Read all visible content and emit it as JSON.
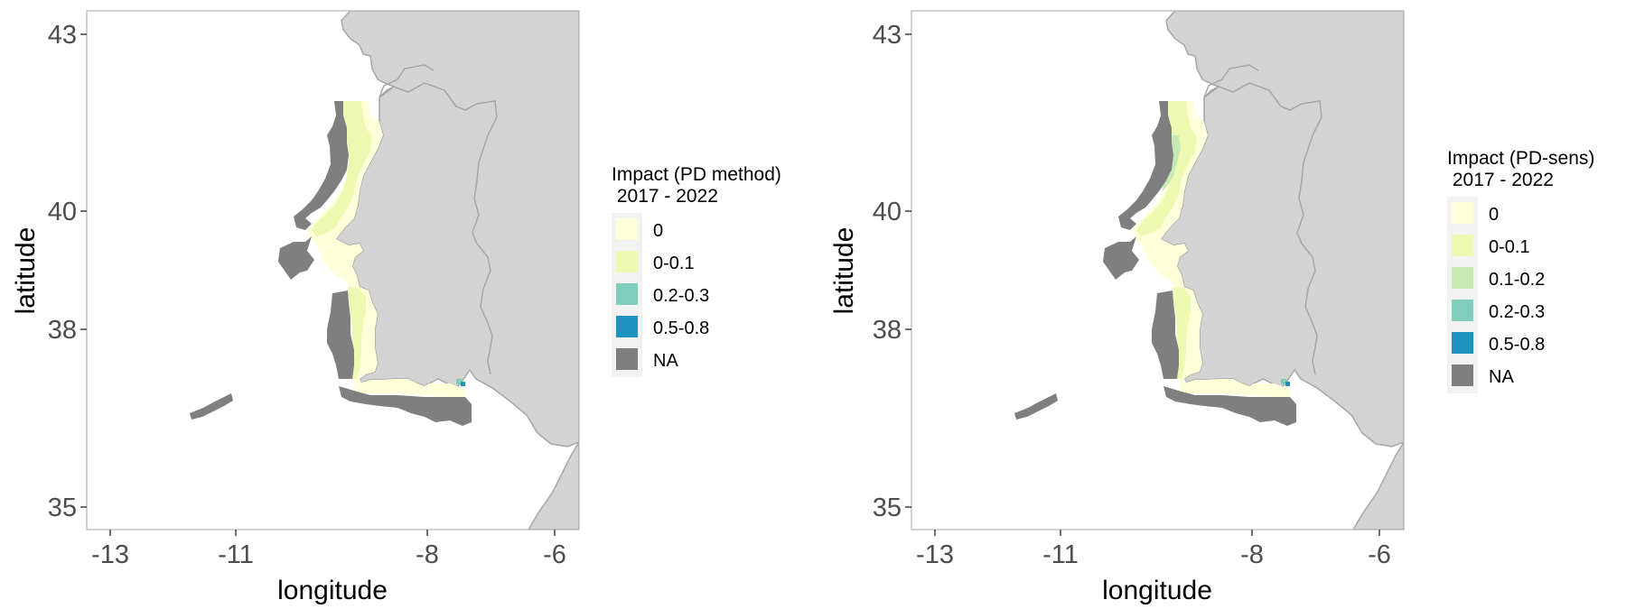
{
  "colors": {
    "land": "#d3d3d3",
    "land_border": "#a6a6a6",
    "na": "#7f7f7f",
    "frame": "#b3b3b3",
    "legend_bg": "#f2f2f2"
  },
  "chart_data": [
    {
      "type": "heatmap",
      "xlabel": "longitude",
      "ylabel": "latitude",
      "x_ticks": [
        "-13",
        "-11",
        "-8",
        "-6"
      ],
      "y_ticks": [
        "43",
        "40",
        "38",
        "35"
      ],
      "xlim": [
        -13.4,
        -5.7
      ],
      "ylim": [
        34.6,
        43.4
      ],
      "grid": false,
      "legend": {
        "position": "right",
        "title_line1": "Impact (PD method)",
        "title_line2": " 2017 - 2022",
        "entries": [
          {
            "label": "0",
            "color": "#ffffd9"
          },
          {
            "label": "0-0.1",
            "color": "#edf8b1"
          },
          {
            "label": "0.2-0.3",
            "color": "#7fcdbb"
          },
          {
            "label": "0.5-0.8",
            "color": "#1d91c0"
          },
          {
            "label": "NA",
            "color": "#7f7f7f"
          }
        ]
      }
    },
    {
      "type": "heatmap",
      "xlabel": "longitude",
      "ylabel": "latitude",
      "x_ticks": [
        "-13",
        "-11",
        "-8",
        "-6"
      ],
      "y_ticks": [
        "43",
        "40",
        "38",
        "35"
      ],
      "xlim": [
        -13.4,
        -5.7
      ],
      "ylim": [
        34.6,
        43.4
      ],
      "grid": false,
      "legend": {
        "position": "right",
        "title_line1": "Impact (PD-sens)",
        "title_line2": " 2017 - 2022",
        "entries": [
          {
            "label": "0",
            "color": "#ffffd9"
          },
          {
            "label": "0-0.1",
            "color": "#edf8b1"
          },
          {
            "label": "0.1-0.2",
            "color": "#c7e9b4"
          },
          {
            "label": "0.2-0.3",
            "color": "#7fcdbb"
          },
          {
            "label": "0.5-0.8",
            "color": "#1d91c0"
          },
          {
            "label": "NA",
            "color": "#7f7f7f"
          }
        ]
      }
    }
  ]
}
